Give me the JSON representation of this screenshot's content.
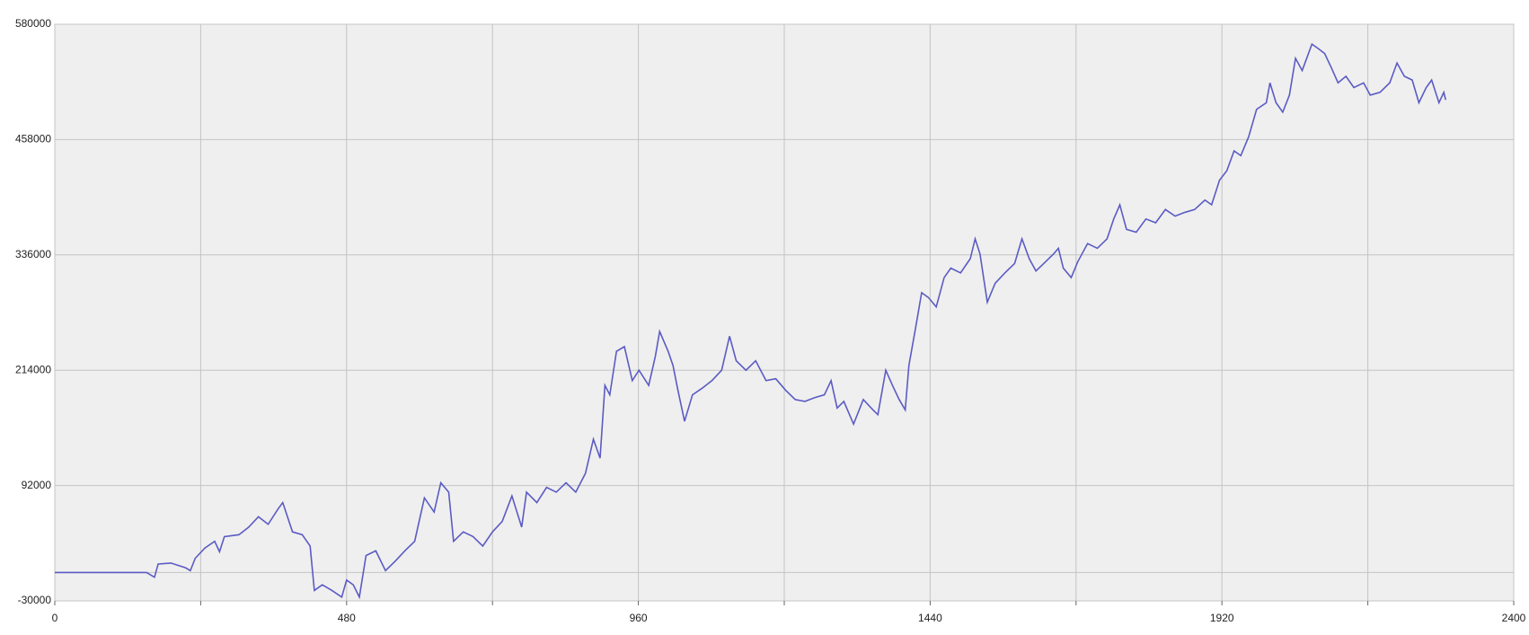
{
  "chart_data": {
    "type": "line",
    "x": [
      0,
      119,
      151,
      164,
      170,
      191,
      215,
      223,
      231,
      247,
      263,
      271,
      279,
      303,
      319,
      335,
      351,
      367,
      375,
      391,
      407,
      420,
      427,
      440,
      456,
      472,
      480,
      491,
      501,
      512,
      528,
      544,
      560,
      576,
      592,
      608,
      624,
      635,
      648,
      656,
      672,
      688,
      704,
      720,
      736,
      752,
      768,
      776,
      793,
      809,
      825,
      841,
      857,
      873,
      886,
      897,
      905,
      913,
      924,
      937,
      950,
      961,
      977,
      988,
      995,
      1009,
      1017,
      1025,
      1036,
      1049,
      1065,
      1081,
      1097,
      1110,
      1121,
      1137,
      1153,
      1170,
      1186,
      1202,
      1218,
      1234,
      1250,
      1266,
      1277,
      1287,
      1298,
      1314,
      1330,
      1346,
      1354,
      1367,
      1378,
      1389,
      1399,
      1405,
      1415,
      1426,
      1437,
      1450,
      1463,
      1474,
      1490,
      1506,
      1514,
      1522,
      1534,
      1547,
      1563,
      1579,
      1591,
      1603,
      1614,
      1627,
      1643,
      1651,
      1659,
      1672,
      1683,
      1699,
      1715,
      1731,
      1742,
      1752,
      1763,
      1779,
      1795,
      1811,
      1827,
      1843,
      1859,
      1875,
      1892,
      1903,
      1916,
      1928,
      1940,
      1951,
      1964,
      1977,
      1993,
      1999,
      2009,
      2020,
      2031,
      2041,
      2052,
      2068,
      2079,
      2089,
      2100,
      2111,
      2124,
      2137,
      2153,
      2164,
      2180,
      2196,
      2208,
      2220,
      2233,
      2244,
      2256,
      2265,
      2277,
      2285,
      2288
    ],
    "series": [
      {
        "color": "#5b5bc4",
        "values": [
          0,
          0,
          0,
          -5000,
          9000,
          10000,
          5000,
          2000,
          15000,
          26000,
          33000,
          22000,
          38000,
          40000,
          48000,
          59000,
          51000,
          67000,
          74000,
          43000,
          40000,
          28000,
          -19000,
          -13000,
          -19000,
          -26000,
          -8000,
          -13000,
          -26000,
          18000,
          23000,
          2000,
          12000,
          23000,
          33000,
          79000,
          64000,
          95000,
          85000,
          33000,
          43000,
          38000,
          28000,
          43000,
          54000,
          81000,
          48000,
          85000,
          74000,
          90000,
          85000,
          95000,
          85000,
          105000,
          141000,
          121000,
          198000,
          188000,
          234000,
          239000,
          203000,
          214000,
          198000,
          229000,
          255000,
          234000,
          219000,
          193000,
          160000,
          188000,
          195000,
          203000,
          214000,
          250000,
          224000,
          214000,
          224000,
          203000,
          205000,
          193000,
          183000,
          181000,
          185000,
          188000,
          203000,
          174000,
          181000,
          157000,
          183000,
          172000,
          167000,
          214000,
          198000,
          183000,
          172000,
          219000,
          255000,
          296000,
          291000,
          281000,
          312000,
          322000,
          317000,
          332000,
          353000,
          337000,
          286000,
          306000,
          317000,
          327000,
          353000,
          332000,
          319000,
          327000,
          337000,
          343000,
          322000,
          312000,
          329000,
          348000,
          343000,
          353000,
          374000,
          389000,
          363000,
          360000,
          374000,
          370000,
          384000,
          377000,
          381000,
          384000,
          394000,
          389000,
          415000,
          425000,
          446000,
          441000,
          461000,
          490000,
          497000,
          518000,
          497000,
          487000,
          505000,
          544000,
          531000,
          559000,
          554000,
          549000,
          534000,
          518000,
          525000,
          513000,
          518000,
          505000,
          508000,
          518000,
          539000,
          525000,
          521000,
          497000,
          513000,
          521000,
          497000,
          508000,
          500000
        ]
      }
    ],
    "xlim": [
      0,
      2400
    ],
    "xticks": [
      0,
      480,
      960,
      1440,
      1920,
      2400
    ],
    "xminor": [
      240,
      720,
      1200,
      1680,
      2160
    ],
    "ylim": [
      -30000,
      580000
    ],
    "yticks": [
      -30000,
      92000,
      214000,
      336000,
      458000,
      580000
    ],
    "yminor": [
      0
    ],
    "grid": true
  }
}
